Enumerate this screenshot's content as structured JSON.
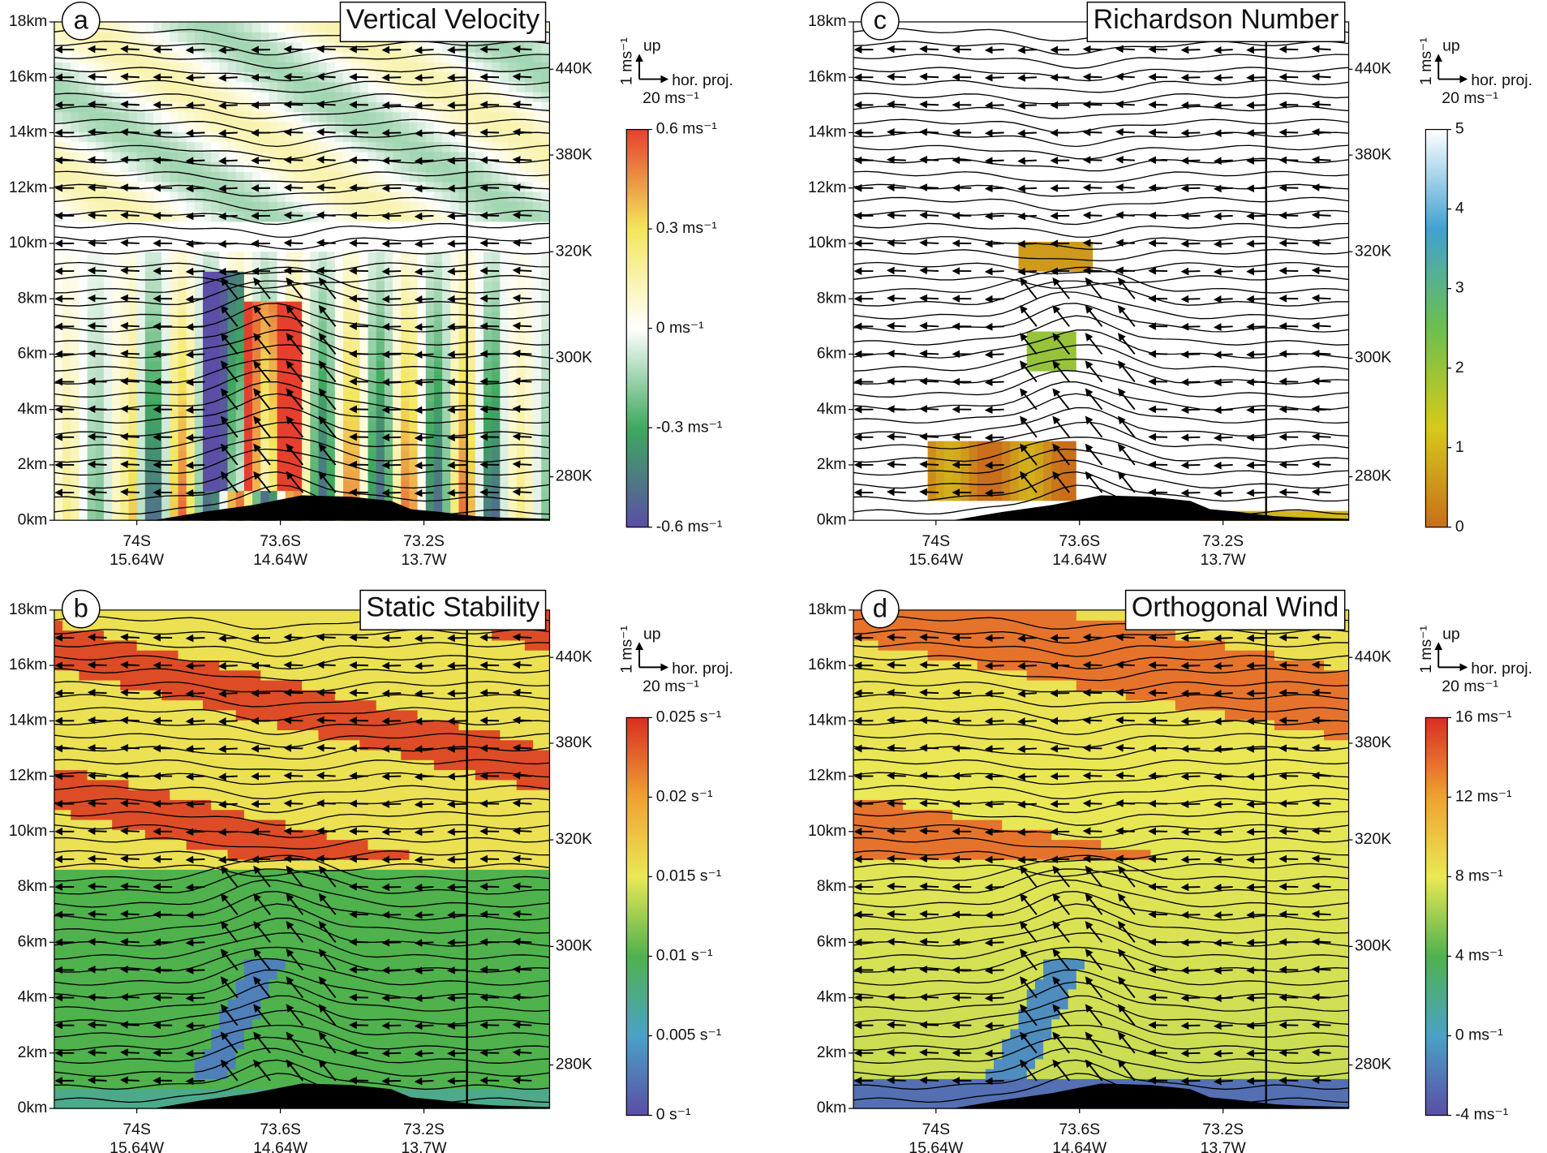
{
  "chart_data": [
    {
      "type": "heatmap",
      "panel": "a",
      "title": "Vertical Velocity",
      "ylim": [
        0,
        18
      ],
      "yticks": [
        {
          "value": 0,
          "label": "0km"
        },
        {
          "value": 2,
          "label": "2km"
        },
        {
          "value": 4,
          "label": "4km"
        },
        {
          "value": 6,
          "label": "6km"
        },
        {
          "value": 8,
          "label": "8km"
        },
        {
          "value": 10,
          "label": "10km"
        },
        {
          "value": 12,
          "label": "12km"
        },
        {
          "value": 14,
          "label": "14km"
        },
        {
          "value": 16,
          "label": "16km"
        },
        {
          "value": 18,
          "label": "18km"
        }
      ],
      "xlim": [
        -74.23,
        -72.85
      ],
      "xticks": [
        {
          "value": -74,
          "label": "74S",
          "sublabel": "15.64W"
        },
        {
          "value": -73.6,
          "label": "73.6S",
          "sublabel": "14.64W"
        },
        {
          "value": -73.2,
          "label": "73.2S",
          "sublabel": "13.7W"
        }
      ],
      "vline_x": -73.08,
      "clim": [
        -0.6,
        0.6
      ],
      "cticks": [
        {
          "value": -0.6,
          "label": "-0.6 ms⁻¹"
        },
        {
          "value": -0.3,
          "label": "-0.3 ms⁻¹"
        },
        {
          "value": 0,
          "label": "0 ms⁻¹"
        },
        {
          "value": 0.3,
          "label": "0.3 ms⁻¹"
        },
        {
          "value": 0.6,
          "label": "0.6 ms⁻¹"
        }
      ],
      "colors": [
        "#5b4ea6",
        "#3ea95e",
        "#ffffff",
        "#f3e65a",
        "#e5402e"
      ],
      "isentropes": [
        {
          "label": "440K",
          "z": 16.29
        },
        {
          "label": "380K",
          "z": 13.19
        },
        {
          "label": "320K",
          "z": 9.7
        },
        {
          "label": "300K",
          "z": 5.85
        },
        {
          "label": "280K",
          "z": 1.57
        }
      ],
      "vector_key": {
        "vertical": "1 ms⁻¹",
        "up": "up",
        "horizontal": "hor. proj.",
        "scale": "20 ms⁻¹"
      }
    },
    {
      "type": "heatmap",
      "panel": "b",
      "title": "Static Stability",
      "ylim": [
        0,
        18
      ],
      "yticks": [
        {
          "value": 0,
          "label": "0km"
        },
        {
          "value": 2,
          "label": "2km"
        },
        {
          "value": 4,
          "label": "4km"
        },
        {
          "value": 6,
          "label": "6km"
        },
        {
          "value": 8,
          "label": "8km"
        },
        {
          "value": 10,
          "label": "10km"
        },
        {
          "value": 12,
          "label": "12km"
        },
        {
          "value": 14,
          "label": "14km"
        },
        {
          "value": 16,
          "label": "16km"
        },
        {
          "value": 18,
          "label": "18km"
        }
      ],
      "xlim": [
        -74.23,
        -72.85
      ],
      "xticks": [
        {
          "value": -74,
          "label": "74S",
          "sublabel": "15.64W"
        },
        {
          "value": -73.6,
          "label": "73.6S",
          "sublabel": "14.64W"
        },
        {
          "value": -73.2,
          "label": "73.2S",
          "sublabel": "13.7W"
        }
      ],
      "vline_x": -73.08,
      "clim": [
        0,
        0.025
      ],
      "cticks": [
        {
          "value": 0,
          "label": "0 s⁻¹"
        },
        {
          "value": 0.005,
          "label": "0.005 s⁻¹"
        },
        {
          "value": 0.01,
          "label": "0.01 s⁻¹"
        },
        {
          "value": 0.015,
          "label": "0.015 s⁻¹"
        },
        {
          "value": 0.02,
          "label": "0.02 s⁻¹"
        },
        {
          "value": 0.025,
          "label": "0.025 s⁻¹"
        }
      ],
      "colors": [
        "#5b4ea6",
        "#49a2c6",
        "#4fb24d",
        "#eae855",
        "#f0a133",
        "#d72f22"
      ],
      "isentropes": [
        {
          "label": "440K",
          "z": 16.29
        },
        {
          "label": "380K",
          "z": 13.19
        },
        {
          "label": "320K",
          "z": 9.7
        },
        {
          "label": "300K",
          "z": 5.85
        },
        {
          "label": "280K",
          "z": 1.57
        }
      ],
      "vector_key": {
        "vertical": "1 ms⁻¹",
        "up": "up",
        "horizontal": "hor. proj.",
        "scale": "20 ms⁻¹"
      }
    },
    {
      "type": "heatmap",
      "panel": "c",
      "title": "Richardson Number",
      "ylim": [
        0,
        18
      ],
      "yticks": [
        {
          "value": 0,
          "label": "0km"
        },
        {
          "value": 2,
          "label": "2km"
        },
        {
          "value": 4,
          "label": "4km"
        },
        {
          "value": 6,
          "label": "6km"
        },
        {
          "value": 8,
          "label": "8km"
        },
        {
          "value": 10,
          "label": "10km"
        },
        {
          "value": 12,
          "label": "12km"
        },
        {
          "value": 14,
          "label": "14km"
        },
        {
          "value": 16,
          "label": "16km"
        },
        {
          "value": 18,
          "label": "18km"
        }
      ],
      "xlim": [
        -74.23,
        -72.85
      ],
      "xticks": [
        {
          "value": -74,
          "label": "74S",
          "sublabel": "15.64W"
        },
        {
          "value": -73.6,
          "label": "73.6S",
          "sublabel": "14.64W"
        },
        {
          "value": -73.2,
          "label": "73.2S",
          "sublabel": "13.7W"
        }
      ],
      "vline_x": -73.08,
      "clim": [
        0,
        5
      ],
      "cticks": [
        0,
        1,
        2,
        3,
        4,
        5
      ],
      "colors": [
        "#c96e1b",
        "#d6c91d",
        "#6cbf4d",
        "#41a2d1",
        "#ffffff"
      ],
      "isentropes": [
        {
          "label": "440K",
          "z": 16.29
        },
        {
          "label": "380K",
          "z": 13.19
        },
        {
          "label": "320K",
          "z": 9.7
        },
        {
          "label": "300K",
          "z": 5.85
        },
        {
          "label": "280K",
          "z": 1.57
        }
      ],
      "vector_key": {
        "vertical": "1 ms⁻¹",
        "up": "up",
        "horizontal": "hor. proj.",
        "scale": "20 ms⁻¹"
      }
    },
    {
      "type": "heatmap",
      "panel": "d",
      "title": "Orthogonal Wind",
      "ylim": [
        0,
        18
      ],
      "yticks": [
        {
          "value": 0,
          "label": "0km"
        },
        {
          "value": 2,
          "label": "2km"
        },
        {
          "value": 4,
          "label": "4km"
        },
        {
          "value": 6,
          "label": "6km"
        },
        {
          "value": 8,
          "label": "8km"
        },
        {
          "value": 10,
          "label": "10km"
        },
        {
          "value": 12,
          "label": "12km"
        },
        {
          "value": 14,
          "label": "14km"
        },
        {
          "value": 16,
          "label": "16km"
        },
        {
          "value": 18,
          "label": "18km"
        }
      ],
      "xlim": [
        -74.23,
        -72.85
      ],
      "xticks": [
        {
          "value": -74,
          "label": "74S",
          "sublabel": "15.64W"
        },
        {
          "value": -73.6,
          "label": "73.6S",
          "sublabel": "14.64W"
        },
        {
          "value": -73.2,
          "label": "73.2S",
          "sublabel": "13.7W"
        }
      ],
      "vline_x": -73.08,
      "clim": [
        -4,
        16
      ],
      "cticks": [
        {
          "value": -4,
          "label": "-4 ms⁻¹"
        },
        {
          "value": 0,
          "label": "0 ms⁻¹"
        },
        {
          "value": 4,
          "label": "4 ms⁻¹"
        },
        {
          "value": 8,
          "label": "8 ms⁻¹"
        },
        {
          "value": 12,
          "label": "12 ms⁻¹"
        },
        {
          "value": 16,
          "label": "16 ms⁻¹"
        }
      ],
      "colors": [
        "#5b4ea6",
        "#49a2c6",
        "#4fb24d",
        "#eae855",
        "#f0a133",
        "#d72f22"
      ],
      "isentropes": [
        {
          "label": "440K",
          "z": 16.29
        },
        {
          "label": "380K",
          "z": 13.19
        },
        {
          "label": "320K",
          "z": 9.7
        },
        {
          "label": "300K",
          "z": 5.85
        },
        {
          "label": "280K",
          "z": 1.57
        }
      ],
      "vector_key": {
        "vertical": "1 ms⁻¹",
        "up": "up",
        "horizontal": "hor. proj.",
        "scale": "20 ms⁻¹"
      }
    }
  ]
}
